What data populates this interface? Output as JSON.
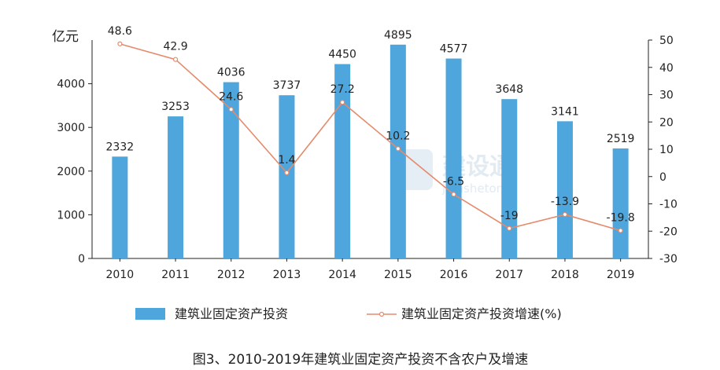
{
  "chart_data": {
    "type": "bar+line",
    "categories": [
      "2010",
      "2011",
      "2012",
      "2013",
      "2014",
      "2015",
      "2016",
      "2017",
      "2018",
      "2019"
    ],
    "series": [
      {
        "name": "建筑业固定资产投资",
        "type": "bar",
        "axis": "left",
        "values": [
          2332,
          3253,
          4036,
          3737,
          4450,
          4895,
          4577,
          3648,
          3141,
          2519
        ],
        "labels": [
          "2332",
          "3253",
          "4036",
          "3737",
          "4450",
          "4895",
          "4577",
          "3648",
          "3141",
          "2519"
        ]
      },
      {
        "name": "建筑业固定资产投资增速(%)",
        "type": "line",
        "axis": "right",
        "values": [
          48.6,
          42.9,
          24.6,
          1.4,
          27.2,
          10.2,
          -6.5,
          -19,
          -13.9,
          -19.8
        ],
        "labels": [
          "48.6",
          "42.9",
          "24.6",
          "1.4",
          "27.2",
          "10.2",
          "-6.5",
          "-19",
          "-13.9",
          "-19.8"
        ]
      }
    ],
    "ylabel": "亿元",
    "ylim": [
      0,
      5000
    ],
    "yticks": [
      "0",
      "1000",
      "2000",
      "3000",
      "4000"
    ],
    "y2lim": [
      -30,
      50
    ],
    "y2ticks": [
      "-30",
      "-20",
      "-10",
      "0",
      "10",
      "20",
      "30",
      "40",
      "50"
    ],
    "legend_position": "bottom",
    "grid": false,
    "caption": "图3、2010-2019年建筑业固定资产投资不含农户及增速",
    "colors": {
      "bar": "#4ea6dc",
      "line": "#e58a6b"
    }
  },
  "watermark": {
    "brand": "建设通",
    "sub": "jianshetong"
  }
}
